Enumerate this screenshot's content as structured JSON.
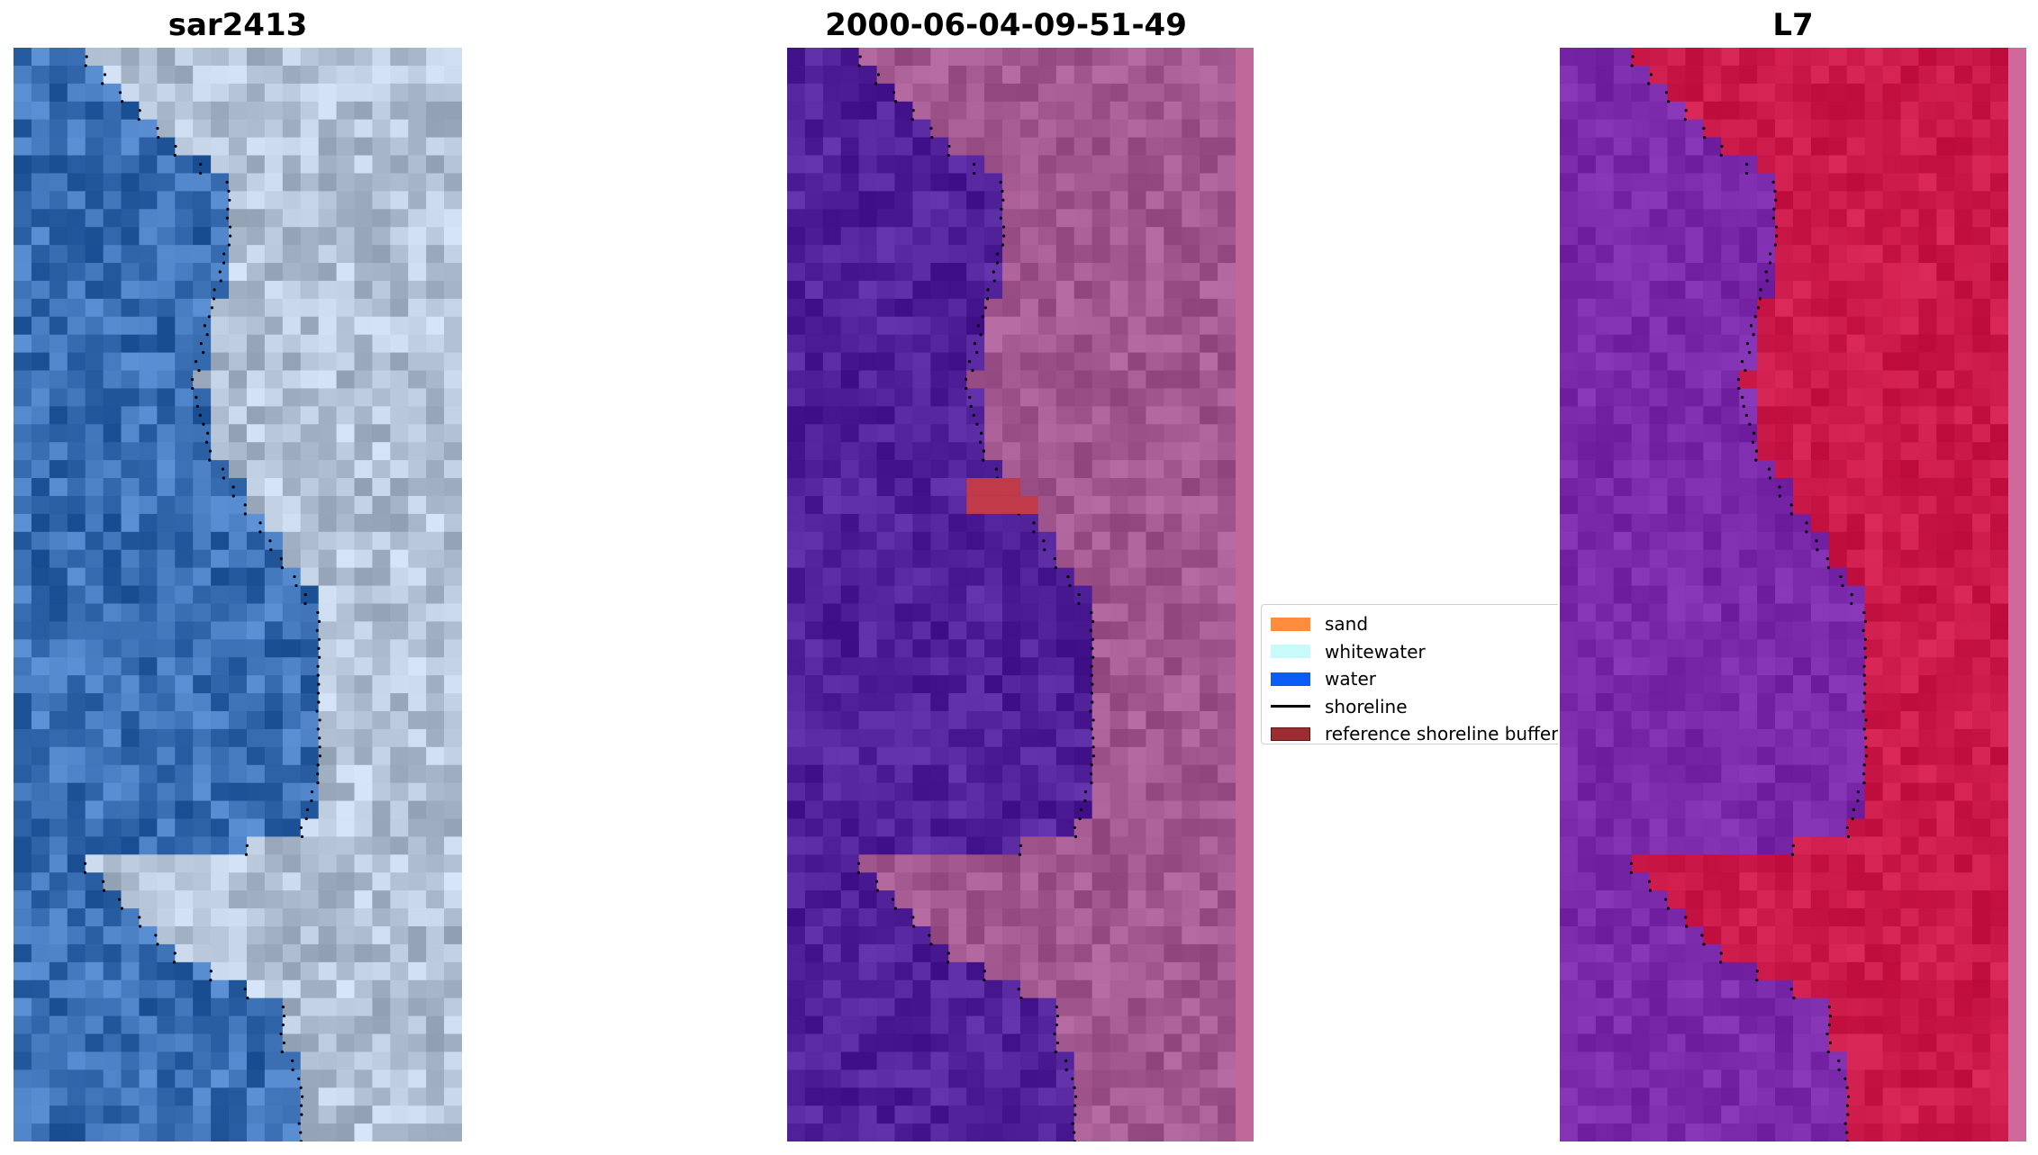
{
  "panels": [
    {
      "title": "sar2413"
    },
    {
      "title": "2000-06-04-09-51-49"
    },
    {
      "title": "L7"
    }
  ],
  "legend": {
    "items": [
      {
        "label": "sand",
        "color": "#ff8c3c",
        "kind": "patch"
      },
      {
        "label": "whitewater",
        "color": "#c8fafa",
        "kind": "patch"
      },
      {
        "label": "water",
        "color": "#0a5cf5",
        "kind": "patch"
      },
      {
        "label": "shoreline",
        "color": "#000000",
        "kind": "line"
      },
      {
        "label": "reference shoreline buffer",
        "color": "#9b2d32",
        "kind": "patch"
      }
    ]
  },
  "colors": {
    "rgb_water": "#3a6fb4",
    "rgb_land": "#b4c2d6",
    "classified_water": "#51219a",
    "classified_land": "#a45890",
    "classified_buffer": "#c03a4a",
    "ndwi_water": "#7a2aaa",
    "ndwi_land": "#cc1a4a"
  }
}
